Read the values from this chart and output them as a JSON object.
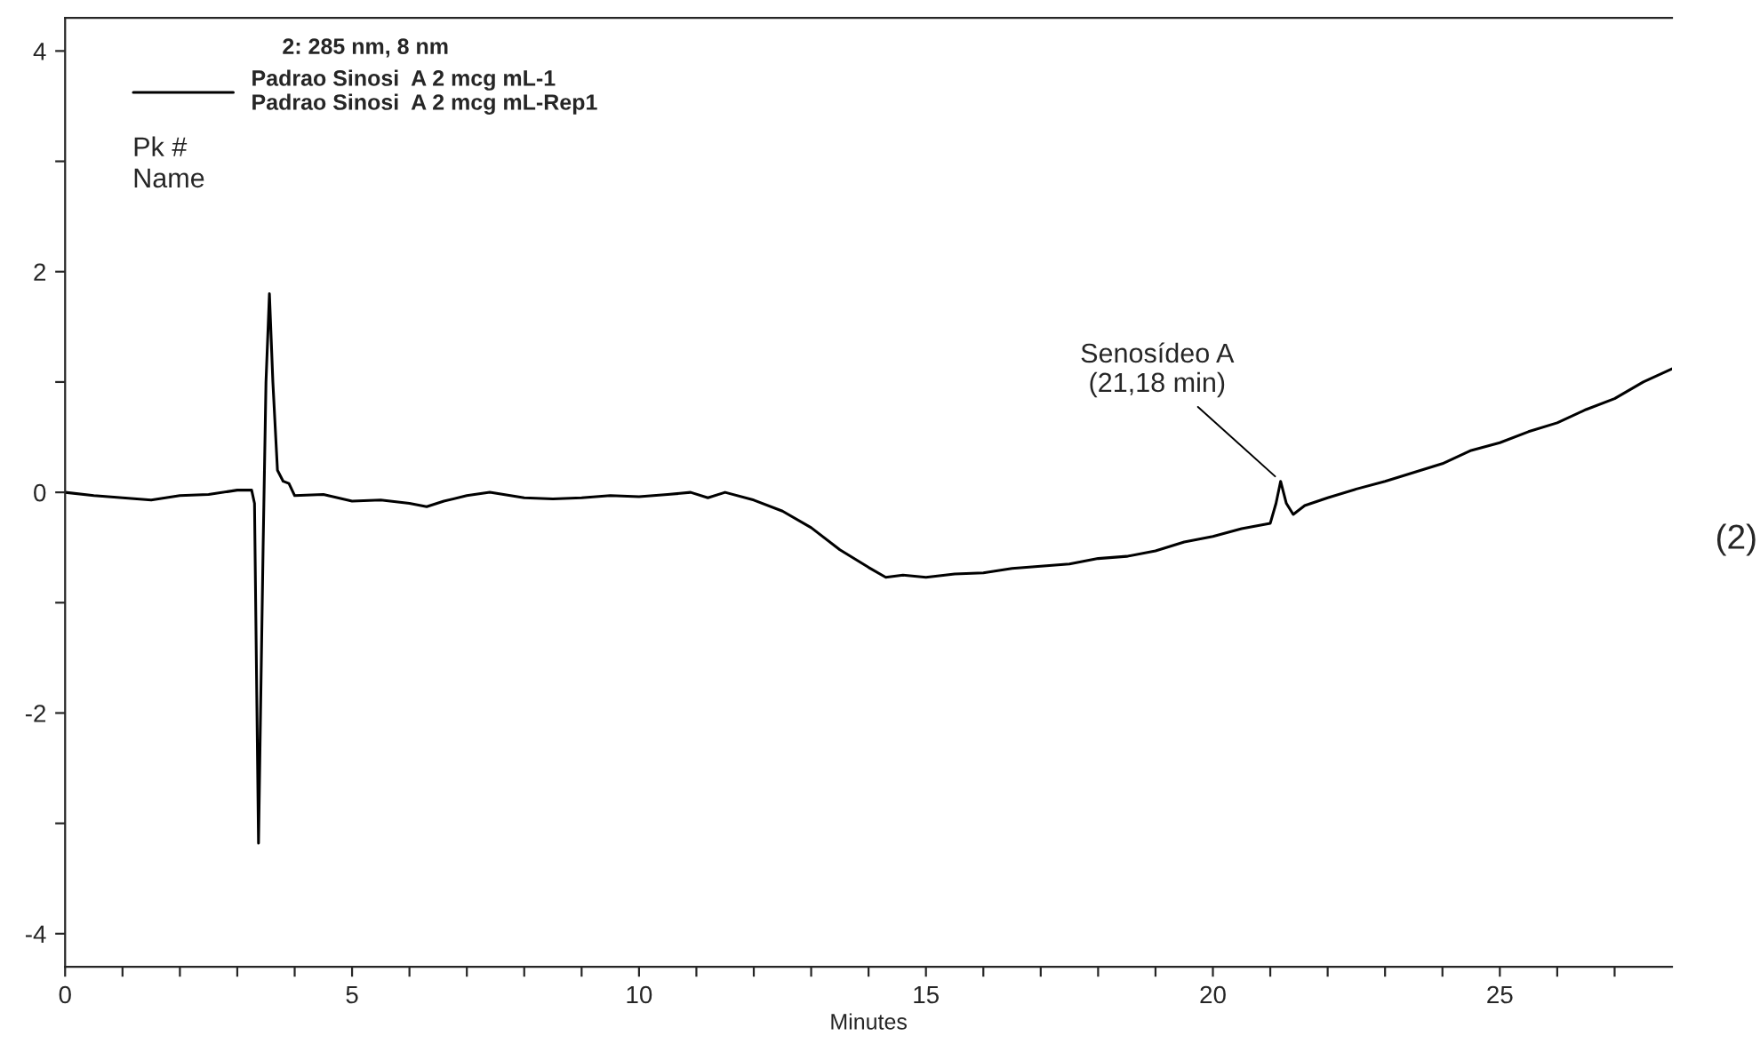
{
  "chart_data": {
    "type": "line",
    "xlabel": "Minutes",
    "legend_title": "2: 285 nm, 8 nm",
    "legend": "top left",
    "x": [
      0,
      0.5,
      1,
      1.5,
      2,
      2.5,
      3.0,
      3.25,
      3.3,
      3.37,
      3.45,
      3.5,
      3.56,
      3.62,
      3.7,
      3.8,
      3.9,
      4.0,
      4.5,
      5,
      5.5,
      6,
      6.3,
      6.6,
      7,
      7.4,
      8,
      8.5,
      9,
      9.5,
      10,
      10.5,
      10.9,
      11.2,
      11.5,
      12,
      12.5,
      13,
      13.5,
      14,
      14.3,
      14.6,
      15,
      15.5,
      16,
      16.5,
      17,
      17.5,
      18,
      18.5,
      19,
      19.5,
      20,
      20.5,
      21.0,
      21.1,
      21.18,
      21.28,
      21.4,
      21.6,
      22,
      22.5,
      23,
      23.5,
      24,
      24.5,
      25,
      25.5,
      26,
      26.5,
      27,
      27.5,
      28
    ],
    "series": [
      {
        "name": "Padrao Sinosi  A 2 mcg mL-1\nPadrao Sinosi  A 2 mcg mL-Rep1",
        "color": "#000000",
        "values": [
          0,
          -0.03,
          -0.05,
          -0.07,
          -0.03,
          -0.02,
          0.02,
          0.02,
          -0.1,
          -3.18,
          -0.5,
          1.0,
          1.8,
          1.0,
          0.2,
          0.1,
          0.08,
          -0.03,
          -0.02,
          -0.08,
          -0.07,
          -0.1,
          -0.13,
          -0.08,
          -0.03,
          0.0,
          -0.05,
          -0.06,
          -0.05,
          -0.03,
          -0.04,
          -0.02,
          0.0,
          -0.05,
          0.0,
          -0.07,
          -0.17,
          -0.32,
          -0.52,
          -0.68,
          -0.77,
          -0.75,
          -0.77,
          -0.74,
          -0.73,
          -0.69,
          -0.67,
          -0.65,
          -0.6,
          -0.58,
          -0.53,
          -0.45,
          -0.4,
          -0.33,
          -0.28,
          -0.1,
          0.1,
          -0.1,
          -0.2,
          -0.12,
          -0.05,
          0.03,
          0.1,
          0.18,
          0.26,
          0.38,
          0.45,
          0.55,
          0.63,
          0.75,
          0.85,
          1.0,
          1.12
        ]
      }
    ],
    "xlim": [
      0,
      28
    ],
    "xticks": [
      0,
      {
        "value": 1,
        "label": null
      },
      {
        "value": 2,
        "label": null
      },
      {
        "value": 3,
        "label": null
      },
      {
        "value": 4,
        "label": null
      },
      5,
      {
        "value": 6,
        "label": null
      },
      {
        "value": 7,
        "label": null
      },
      {
        "value": 8,
        "label": null
      },
      {
        "value": 9,
        "label": null
      },
      10,
      {
        "value": 11,
        "label": null
      },
      {
        "value": 12,
        "label": null
      },
      {
        "value": 13,
        "label": null
      },
      {
        "value": 14,
        "label": null
      },
      15,
      {
        "value": 16,
        "label": null
      },
      {
        "value": 17,
        "label": null
      },
      {
        "value": 18,
        "label": null
      },
      {
        "value": 19,
        "label": null
      },
      20,
      {
        "value": 21,
        "label": null
      },
      {
        "value": 22,
        "label": null
      },
      {
        "value": 23,
        "label": null
      },
      {
        "value": 24,
        "label": null
      },
      25,
      {
        "value": 26,
        "label": null
      },
      {
        "value": 27,
        "label": null
      }
    ],
    "ylim": [
      -4.3,
      4.3
    ],
    "yticks": [
      -4,
      {
        "value": -3,
        "label": null
      },
      -2,
      {
        "value": -1,
        "label": null
      },
      0,
      {
        "value": 1,
        "label": null
      },
      2,
      {
        "value": 3,
        "label": null
      },
      4
    ],
    "grid": false,
    "line_style": "solid",
    "annotations": [
      "Pk #\nName",
      {
        "text": "Senosídeo A\n(21,18 min)",
        "x": 21.18,
        "y": 0.1
      },
      "(2)"
    ]
  }
}
